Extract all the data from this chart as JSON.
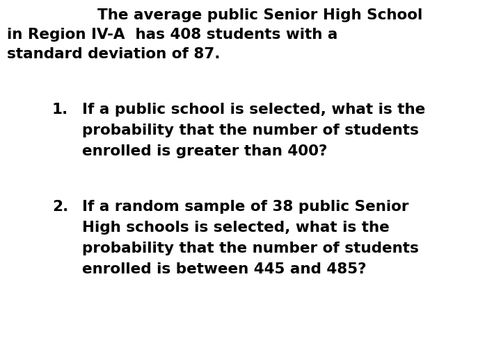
{
  "background_color": "#ffffff",
  "text_color": "#000000",
  "font_family": "Arial",
  "intro_line1": "The average public Senior High School",
  "intro_line2": "in Region IV-A  has 408 students with a",
  "intro_line3": "standard deviation of 87.",
  "q1_number": "1.",
  "q1_line1": "If a public school is selected, what is the",
  "q1_line2": "probability that the number of students",
  "q1_line3": "enrolled is greater than 400?",
  "q2_number": "2.",
  "q2_line1": "If a random sample of 38 public Senior",
  "q2_line2": "High schools is selected, what is the",
  "q2_line3": "probability that the number of students",
  "q2_line4": "enrolled is between 445 and 485?",
  "intro_fontsize": 15.5,
  "question_fontsize": 15.5,
  "fig_width": 7.2,
  "fig_height": 4.87,
  "dpi": 100
}
